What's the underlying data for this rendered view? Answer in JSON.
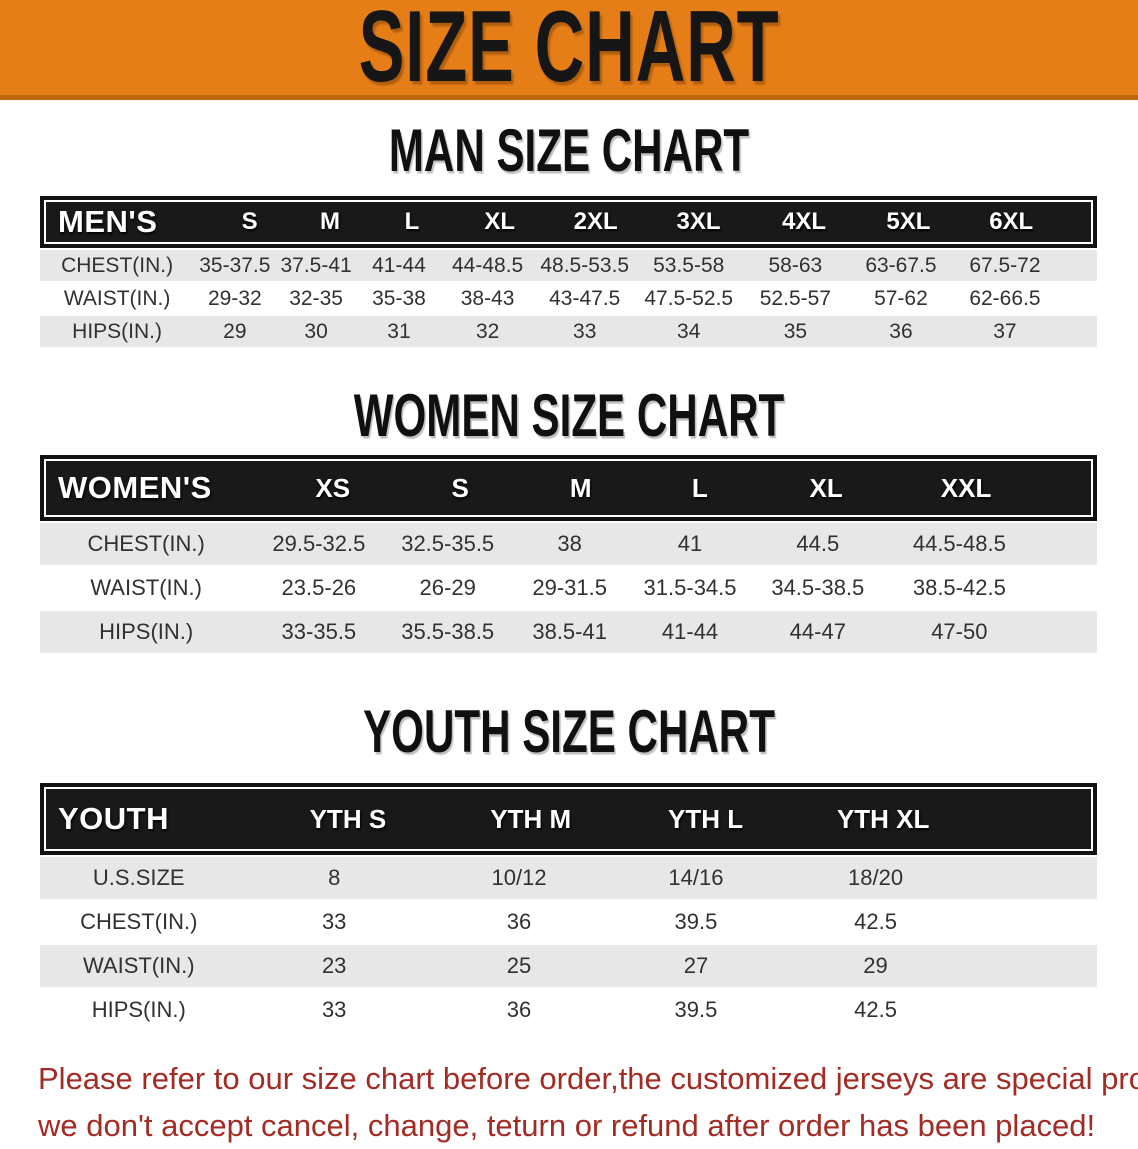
{
  "banner": {
    "title": "SIZE CHART",
    "bg_color": "#E67E18",
    "text_color": "#161616"
  },
  "sections": [
    {
      "heading": "MAN SIZE CHART",
      "table": {
        "label": "MEN'S",
        "columns": [
          "S",
          "M",
          "L",
          "XL",
          "2XL",
          "3XL",
          "4XL",
          "5XL",
          "6XL"
        ],
        "rows": [
          {
            "label": "CHEST(IN.)",
            "values": [
              "35-37.5",
              "37.5-41",
              "41-44",
              "44-48.5",
              "48.5-53.5",
              "53.5-58",
              "58-63",
              "63-67.5",
              "67.5-72"
            ]
          },
          {
            "label": "WAIST(IN.)",
            "values": [
              "29-32",
              "32-35",
              "35-38",
              "38-43",
              "43-47.5",
              "47.5-52.5",
              "52.5-57",
              "57-62",
              "62-66.5"
            ]
          },
          {
            "label": "HIPS(IN.)",
            "values": [
              "29",
              "30",
              "31",
              "32",
              "33",
              "34",
              "35",
              "36",
              "37"
            ]
          }
        ]
      }
    },
    {
      "heading": "WOMEN SIZE CHART",
      "table": {
        "label": "WOMEN'S",
        "columns": [
          "XS",
          "S",
          "M",
          "L",
          "XL",
          "XXL"
        ],
        "rows": [
          {
            "label": "CHEST(IN.)",
            "values": [
              "29.5-32.5",
              "32.5-35.5",
              "38",
              "41",
              "44.5",
              "44.5-48.5"
            ]
          },
          {
            "label": "WAIST(IN.)",
            "values": [
              "23.5-26",
              "26-29",
              "29-31.5",
              "31.5-34.5",
              "34.5-38.5",
              "38.5-42.5"
            ]
          },
          {
            "label": "HIPS(IN.)",
            "values": [
              "33-35.5",
              "35.5-38.5",
              "38.5-41",
              "41-44",
              "44-47",
              "47-50"
            ]
          }
        ]
      }
    },
    {
      "heading": "YOUTH SIZE CHART",
      "table": {
        "label": "YOUTH",
        "columns": [
          "YTH S",
          "YTH M",
          "YTH L",
          "YTH XL"
        ],
        "rows": [
          {
            "label": "U.S.SIZE",
            "values": [
              "8",
              "10/12",
              "14/16",
              "18/20"
            ]
          },
          {
            "label": "CHEST(IN.)",
            "values": [
              "33",
              "36",
              "39.5",
              "42.5"
            ]
          },
          {
            "label": "WAIST(IN.)",
            "values": [
              "23",
              "25",
              "27",
              "29"
            ]
          },
          {
            "label": "HIPS(IN.)",
            "values": [
              "33",
              "36",
              "39.5",
              "42.5"
            ]
          }
        ]
      }
    }
  ],
  "footer": {
    "line1": "Please refer to our size chart before order,the customized jerseys are special products,",
    "line2": "we don't accept cancel, change, teturn or refund after order has been placed!",
    "text_color": "#A32B24"
  }
}
